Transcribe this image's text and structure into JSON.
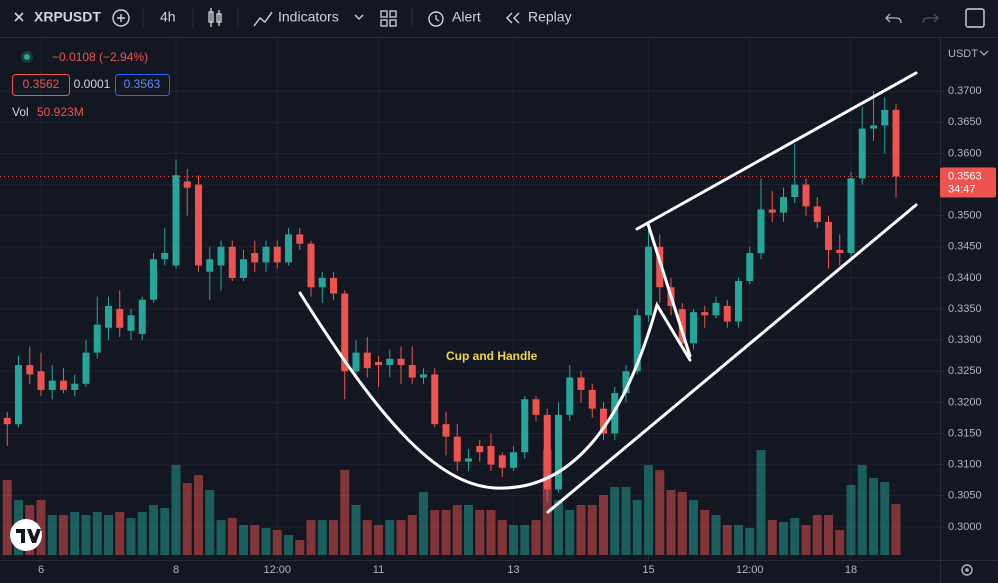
{
  "toolbar": {
    "symbol": "XRPUSDT",
    "interval": "4h",
    "indicators": "Indicators",
    "alert": "Alert",
    "replay": "Replay"
  },
  "legend": {
    "change": "−0.0108 (−2.94%)",
    "bid": "0.3562",
    "spread": "0.0001",
    "ask": "0.3563",
    "volume_label": "Vol",
    "volume_value": "50.923M"
  },
  "chart_data": {
    "type": "candlestick",
    "title": "XRPUSDT",
    "currency": "USDT",
    "countdown": "34:47",
    "annotation": "Cup and Handle",
    "up_color": "#26a69a",
    "down_color": "#ef5350",
    "grid": true,
    "categories": [
      null,
      null,
      null,
      "6",
      null,
      null,
      null,
      null,
      null,
      null,
      null,
      null,
      null,
      null,
      null,
      "8",
      null,
      null,
      null,
      null,
      null,
      null,
      null,
      null,
      "12:00",
      null,
      null,
      null,
      null,
      null,
      null,
      null,
      null,
      "11",
      null,
      null,
      null,
      null,
      null,
      null,
      null,
      null,
      null,
      null,
      null,
      "13",
      null,
      null,
      null,
      null,
      null,
      null,
      null,
      null,
      null,
      null,
      null,
      "15",
      null,
      null,
      null,
      null,
      null,
      null,
      null,
      null,
      "12:00",
      null,
      null,
      null,
      null,
      null,
      null,
      null,
      null,
      "18",
      null,
      null,
      null,
      null
    ],
    "open": [
      0.3175,
      0.3165,
      0.326,
      0.325,
      0.322,
      0.3235,
      0.322,
      0.323,
      0.328,
      0.332,
      0.335,
      0.3315,
      0.331,
      0.3365,
      0.343,
      0.342,
      0.3555,
      0.355,
      0.341,
      0.342,
      0.345,
      0.34,
      0.344,
      0.3425,
      0.345,
      0.3425,
      0.347,
      0.3455,
      0.3385,
      0.34,
      0.3375,
      0.325,
      0.328,
      0.3265,
      0.326,
      0.327,
      0.326,
      0.324,
      0.3245,
      0.3165,
      0.3145,
      0.3105,
      0.313,
      0.313,
      0.3115,
      0.3095,
      0.312,
      0.3205,
      0.318,
      0.306,
      0.318,
      0.324,
      0.322,
      0.319,
      0.315,
      0.3215,
      0.325,
      0.334,
      0.345,
      0.3385,
      0.335,
      0.3295,
      0.3345,
      0.334,
      0.3355,
      0.333,
      0.3395,
      0.344,
      0.351,
      0.3505,
      0.353,
      0.355,
      0.3515,
      0.349,
      0.3445,
      0.344,
      0.356,
      0.364,
      0.3645,
      0.367
    ],
    "high": [
      0.3185,
      0.3275,
      0.329,
      0.328,
      0.326,
      0.3255,
      0.3245,
      0.33,
      0.337,
      0.337,
      0.338,
      0.335,
      0.337,
      0.344,
      0.348,
      0.359,
      0.3575,
      0.3565,
      0.345,
      0.346,
      0.346,
      0.3445,
      0.346,
      0.346,
      0.346,
      0.348,
      0.348,
      0.346,
      0.341,
      0.341,
      0.338,
      0.33,
      0.3305,
      0.3275,
      0.3285,
      0.329,
      0.329,
      0.3255,
      0.3255,
      0.3185,
      0.3165,
      0.3125,
      0.314,
      0.315,
      0.312,
      0.313,
      0.321,
      0.321,
      0.319,
      0.32,
      0.326,
      0.325,
      0.323,
      0.32,
      0.3225,
      0.326,
      0.335,
      0.349,
      0.347,
      0.34,
      0.336,
      0.335,
      0.3355,
      0.337,
      0.3365,
      0.34,
      0.345,
      0.356,
      0.354,
      0.3545,
      0.3615,
      0.356,
      0.353,
      0.35,
      0.347,
      0.357,
      0.3675,
      0.37,
      0.369,
      0.368
    ],
    "low": [
      0.313,
      0.316,
      0.323,
      0.321,
      0.3205,
      0.3215,
      0.321,
      0.3225,
      0.327,
      0.33,
      0.3305,
      0.33,
      0.33,
      0.336,
      0.342,
      0.3415,
      0.35,
      0.341,
      0.3365,
      0.338,
      0.3395,
      0.3395,
      0.341,
      0.341,
      0.3415,
      0.342,
      0.3445,
      0.337,
      0.336,
      0.3365,
      0.3205,
      0.324,
      0.324,
      0.3225,
      0.324,
      0.323,
      0.323,
      0.323,
      0.316,
      0.3115,
      0.309,
      0.309,
      0.3105,
      0.309,
      0.308,
      0.309,
      0.311,
      0.317,
      0.304,
      0.3055,
      0.317,
      0.32,
      0.3175,
      0.314,
      0.314,
      0.32,
      0.3245,
      0.333,
      0.336,
      0.334,
      0.329,
      0.3285,
      0.332,
      0.3335,
      0.332,
      0.332,
      0.339,
      0.343,
      0.349,
      0.349,
      0.352,
      0.35,
      0.348,
      0.3415,
      0.342,
      0.343,
      0.355,
      0.362,
      0.36,
      0.353
    ],
    "close": [
      0.3165,
      0.326,
      0.3245,
      0.322,
      0.3235,
      0.322,
      0.323,
      0.328,
      0.3325,
      0.3355,
      0.332,
      0.334,
      0.3365,
      0.343,
      0.344,
      0.3565,
      0.3545,
      0.342,
      0.343,
      0.345,
      0.34,
      0.343,
      0.3425,
      0.345,
      0.3425,
      0.347,
      0.3455,
      0.3385,
      0.34,
      0.3375,
      0.325,
      0.328,
      0.3255,
      0.326,
      0.327,
      0.326,
      0.324,
      0.3245,
      0.3165,
      0.3145,
      0.3105,
      0.311,
      0.312,
      0.31,
      0.3095,
      0.312,
      0.3205,
      0.318,
      0.306,
      0.318,
      0.324,
      0.322,
      0.319,
      0.315,
      0.3215,
      0.325,
      0.334,
      0.345,
      0.3385,
      0.3355,
      0.3295,
      0.3345,
      0.334,
      0.336,
      0.333,
      0.3395,
      0.344,
      0.351,
      0.3505,
      0.353,
      0.355,
      0.3515,
      0.349,
      0.3445,
      0.344,
      0.356,
      0.364,
      0.3645,
      0.367,
      0.3563
    ],
    "volume": [
      75,
      55,
      50,
      55,
      40,
      40,
      43,
      40,
      43,
      40,
      43,
      37,
      43,
      50,
      47,
      90,
      72,
      80,
      65,
      35,
      37,
      30,
      30,
      27,
      25,
      20,
      15,
      35,
      35,
      35,
      85,
      50,
      35,
      30,
      35,
      35,
      40,
      63,
      45,
      45,
      50,
      50,
      45,
      45,
      35,
      30,
      30,
      35,
      105,
      55,
      45,
      50,
      50,
      60,
      68,
      68,
      55,
      90,
      85,
      65,
      63,
      55,
      45,
      40,
      30,
      30,
      27,
      105,
      35,
      33,
      37,
      30,
      40,
      40,
      25,
      70,
      90,
      77,
      73,
      50.923
    ],
    "ylim": [
      0.29468,
      0.37855
    ],
    "yticks": [
      {
        "value": 0.3,
        "label": "0.3000"
      },
      {
        "value": 0.305,
        "label": "0.3050"
      },
      {
        "value": 0.31,
        "label": "0.3100"
      },
      {
        "value": 0.315,
        "label": "0.3150"
      },
      {
        "value": 0.32,
        "label": "0.3200"
      },
      {
        "value": 0.325,
        "label": "0.3250"
      },
      {
        "value": 0.33,
        "label": "0.3300"
      },
      {
        "value": 0.335,
        "label": "0.3350"
      },
      {
        "value": 0.34,
        "label": "0.3400"
      },
      {
        "value": 0.345,
        "label": "0.3450"
      },
      {
        "value": 0.35,
        "label": "0.3500"
      },
      {
        "value": 0.355,
        "label": "0.3550"
      },
      {
        "value": 0.36,
        "label": "0.3600"
      },
      {
        "value": 0.365,
        "label": "0.3650"
      },
      {
        "value": 0.37,
        "label": "0.3700"
      }
    ]
  }
}
